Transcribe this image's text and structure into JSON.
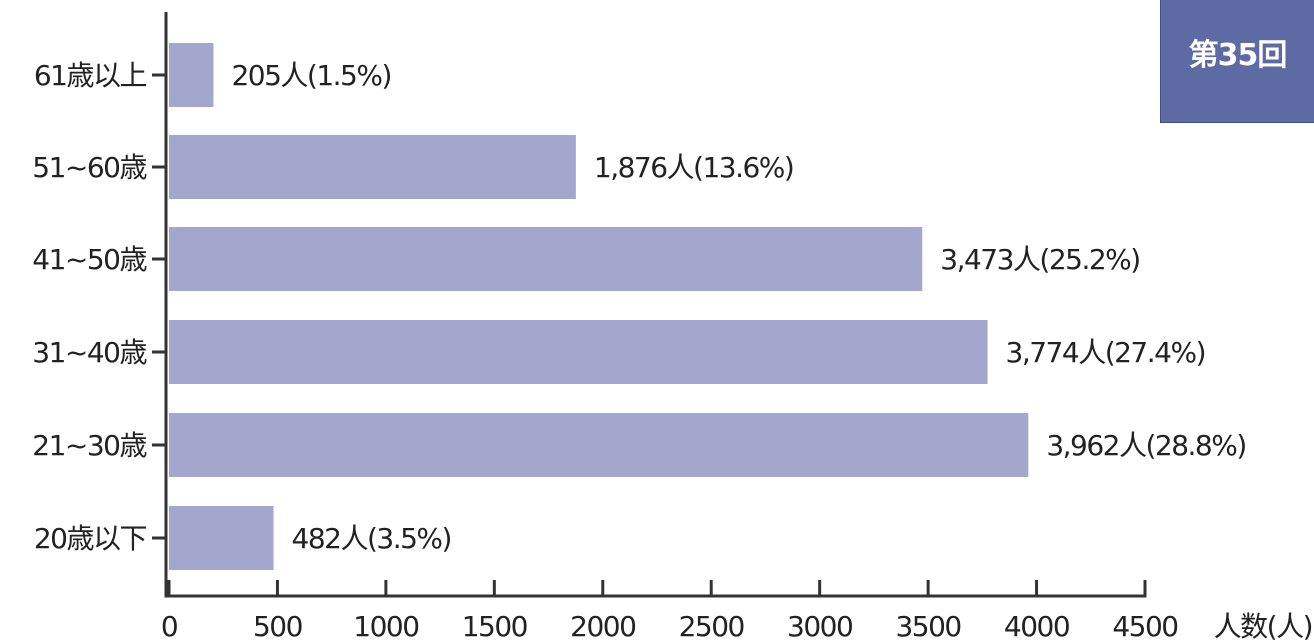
{
  "badge": {
    "label": "第35回",
    "color": "#5e6aa4"
  },
  "chart_data": {
    "type": "bar",
    "orientation": "horizontal",
    "categories": [
      "61歳以上",
      "51~60歳",
      "41~50歳",
      "31~40歳",
      "21~30歳",
      "20歳以下"
    ],
    "values": [
      205,
      1876,
      3473,
      3774,
      3962,
      482
    ],
    "data_labels": [
      "205人(1.5%)",
      "1,876人(13.6%)",
      "3,473人(25.2%)",
      "3,774人(27.4%)",
      "3,962人(28.8%)",
      "482人(3.5%)"
    ],
    "x_ticks": [
      "0",
      "500",
      "1000",
      "1500",
      "2000",
      "2500",
      "3000",
      "3500",
      "4000",
      "4500"
    ],
    "xlim": [
      0,
      4500
    ],
    "xlabel": "人数(人)",
    "ylabel": "",
    "title": "",
    "grid": false,
    "bar_color": "#a3a6cd",
    "axis_color": "#333333"
  }
}
